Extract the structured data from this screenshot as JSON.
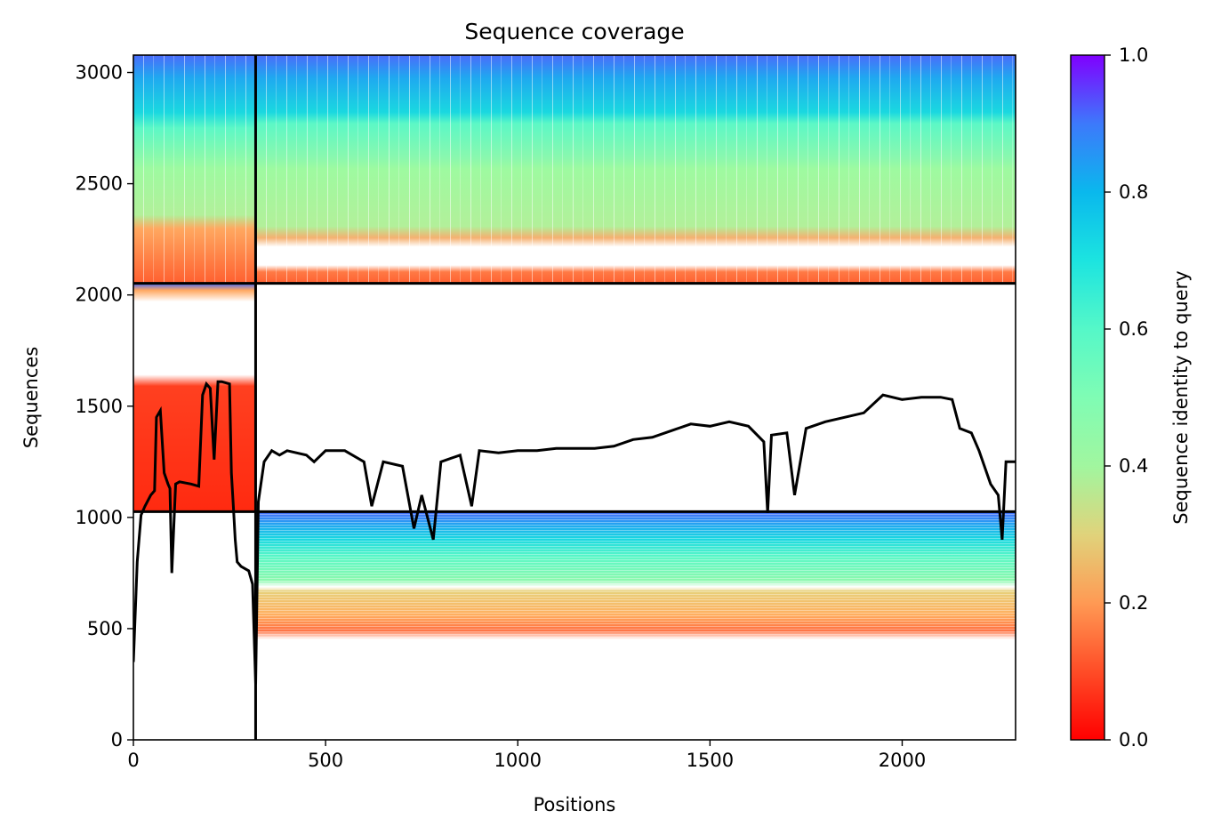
{
  "chart_data": {
    "type": "heatmap",
    "title": "Sequence coverage",
    "xlabel": "Positions",
    "ylabel": "Sequences",
    "xlim": [
      0,
      2295
    ],
    "ylim": [
      0,
      3078
    ],
    "xticks": [
      0,
      500,
      1000,
      1500,
      2000
    ],
    "yticks": [
      0,
      500,
      1000,
      1500,
      2000,
      2500,
      3000
    ],
    "colorbar": {
      "label": "Sequence identity to query",
      "range": [
        0.0,
        1.0
      ],
      "ticks": [
        "0.0",
        "0.2",
        "0.4",
        "0.6",
        "0.8",
        "1.0"
      ],
      "colormap": "rainbow_r"
    },
    "block_dividers": {
      "x": [
        318
      ],
      "y": [
        1026,
        2052
      ]
    },
    "coverage_line": {
      "name": "coverage",
      "color": "#000000",
      "x": [
        0,
        10,
        20,
        30,
        45,
        55,
        60,
        70,
        80,
        90,
        95,
        100,
        110,
        120,
        150,
        170,
        180,
        190,
        200,
        210,
        220,
        230,
        250,
        255,
        260,
        265,
        270,
        280,
        300,
        310,
        318,
        325,
        340,
        360,
        380,
        400,
        450,
        470,
        500,
        550,
        600,
        620,
        650,
        700,
        730,
        750,
        780,
        800,
        850,
        880,
        900,
        950,
        1000,
        1050,
        1100,
        1200,
        1250,
        1300,
        1350,
        1400,
        1450,
        1500,
        1550,
        1600,
        1640,
        1650,
        1660,
        1700,
        1720,
        1750,
        1800,
        1850,
        1900,
        1950,
        2000,
        2050,
        2100,
        2130,
        2150,
        2180,
        2200,
        2230,
        2250,
        2260,
        2270,
        2295
      ],
      "y": [
        350,
        800,
        1010,
        1050,
        1100,
        1120,
        1450,
        1480,
        1200,
        1150,
        1130,
        750,
        1150,
        1160,
        1150,
        1140,
        1550,
        1600,
        1580,
        1260,
        1610,
        1610,
        1600,
        1200,
        1050,
        900,
        800,
        780,
        760,
        700,
        250,
        1070,
        1250,
        1300,
        1280,
        1300,
        1280,
        1250,
        1300,
        1300,
        1250,
        1050,
        1250,
        1230,
        950,
        1100,
        900,
        1250,
        1280,
        1050,
        1300,
        1290,
        1300,
        1300,
        1310,
        1310,
        1320,
        1350,
        1360,
        1390,
        1420,
        1410,
        1430,
        1410,
        1340,
        1020,
        1370,
        1380,
        1100,
        1400,
        1430,
        1450,
        1470,
        1550,
        1530,
        1540,
        1540,
        1530,
        1400,
        1380,
        1300,
        1150,
        1100,
        900,
        1250,
        1250
      ]
    }
  }
}
